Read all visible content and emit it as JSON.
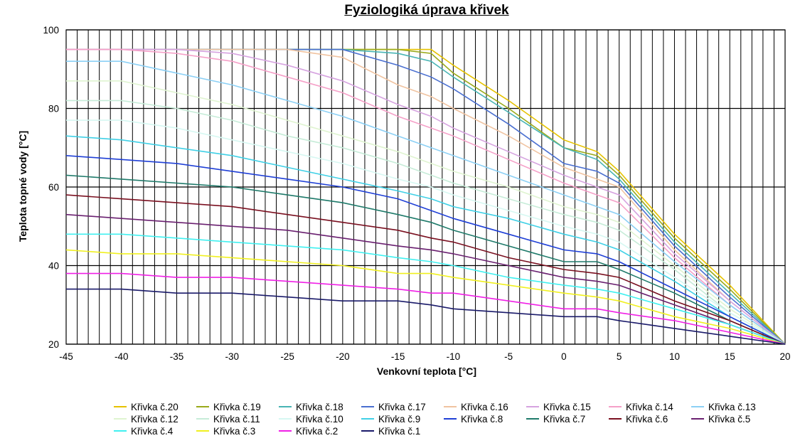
{
  "chart_data": {
    "type": "line",
    "title": "Fyziologiká úprava  křivek",
    "xlabel": "Venkovní teplota [°C]",
    "ylabel": "Teplota topné vody [°C]",
    "xlim": [
      -45,
      20
    ],
    "ylim": [
      20,
      100
    ],
    "x_ticks": [
      "-45",
      "-40",
      "-35",
      "-30",
      "-25",
      "-20",
      "-15",
      "-10",
      "-5",
      "0",
      "5",
      "10",
      "15",
      "20"
    ],
    "y_ticks": [
      "20",
      "40",
      "60",
      "80",
      "100"
    ],
    "grid": true,
    "legend_position": "bottom",
    "x": [
      -45,
      -40,
      -35,
      -30,
      -25,
      -20,
      -15,
      -12,
      -10,
      -5,
      0,
      3,
      5,
      10,
      15,
      20
    ],
    "series": [
      {
        "name": "Křivka č.20",
        "color": "#e6c200",
        "values": [
          95,
          95,
          95,
          95,
          95,
          95,
          95,
          95,
          91,
          82,
          72,
          69,
          64,
          48,
          35,
          20
        ]
      },
      {
        "name": "Křivka č.19",
        "color": "#9aaa1a",
        "values": [
          95,
          95,
          95,
          95,
          95,
          95,
          95,
          94,
          89,
          80,
          70,
          68,
          63,
          47,
          34,
          20
        ]
      },
      {
        "name": "Křivka č.18",
        "color": "#48b4b4",
        "values": [
          95,
          95,
          95,
          95,
          95,
          95,
          94,
          92,
          88,
          79,
          70,
          67,
          62,
          46,
          33,
          20
        ]
      },
      {
        "name": "Křivka č.17",
        "color": "#4a6fd0",
        "values": [
          95,
          95,
          95,
          95,
          95,
          95,
          91,
          88,
          85,
          76,
          66,
          64,
          61,
          45,
          32,
          20
        ]
      },
      {
        "name": "Křivka č.16",
        "color": "#f0c3a0",
        "values": [
          95,
          95,
          95,
          95,
          95,
          93,
          86,
          83,
          80,
          73,
          65,
          62,
          60,
          44,
          31,
          20
        ]
      },
      {
        "name": "Křivka č.15",
        "color": "#d6a3e0",
        "values": [
          95,
          95,
          95,
          94,
          91,
          87,
          81,
          78,
          75,
          69,
          63,
          60,
          58,
          43,
          31,
          20
        ]
      },
      {
        "name": "Křivka č.14",
        "color": "#f5a0c8",
        "values": [
          95,
          95,
          94,
          92,
          88,
          84,
          78,
          75,
          73,
          67,
          61,
          58,
          56,
          42,
          30,
          20
        ]
      },
      {
        "name": "Křivka č.13",
        "color": "#8cd0f5",
        "values": [
          92,
          92,
          89,
          86,
          82,
          78,
          73,
          70,
          68,
          63,
          58,
          55,
          53,
          41,
          30,
          20
        ]
      },
      {
        "name": "Křivka č.12",
        "color": "#dff4d0",
        "values": [
          87,
          87,
          84,
          81,
          77,
          73,
          69,
          66,
          64,
          60,
          55,
          53,
          51,
          40,
          29,
          20
        ]
      },
      {
        "name": "Křivka č.11",
        "color": "#c6ecd8",
        "values": [
          82,
          82,
          80,
          77,
          73,
          70,
          66,
          63,
          61,
          57,
          53,
          51,
          49,
          39,
          28,
          20
        ]
      },
      {
        "name": "Křivka č.10",
        "color": "#d6f8f2",
        "values": [
          77,
          77,
          75,
          72,
          69,
          66,
          62,
          60,
          58,
          54,
          50,
          48,
          46,
          37,
          28,
          20
        ]
      },
      {
        "name": "Křivka č.9",
        "color": "#40d0e6",
        "values": [
          73,
          72,
          70,
          68,
          65,
          62,
          59,
          57,
          55,
          52,
          48,
          46,
          44,
          36,
          27,
          20
        ]
      },
      {
        "name": "Křivka č.8",
        "color": "#1f3fd6",
        "values": [
          68,
          67,
          66,
          64,
          62,
          60,
          57,
          54,
          52,
          48,
          44,
          43,
          41,
          34,
          27,
          20
        ]
      },
      {
        "name": "Křivka č.7",
        "color": "#1f7a6a",
        "values": [
          63,
          62,
          61,
          60,
          58,
          56,
          53,
          51,
          49,
          45,
          41,
          41,
          39,
          33,
          26,
          20
        ]
      },
      {
        "name": "Křivka č.6",
        "color": "#7a1020",
        "values": [
          58,
          57,
          56,
          55,
          53,
          51,
          49,
          47,
          46,
          42,
          39,
          38,
          37,
          31,
          26,
          20
        ]
      },
      {
        "name": "Křivka č.5",
        "color": "#6a2070",
        "values": [
          53,
          52,
          51,
          50,
          49,
          47,
          45,
          44,
          43,
          40,
          37,
          36,
          35,
          30,
          25,
          20
        ]
      },
      {
        "name": "Křivka č.4",
        "color": "#40f0f0",
        "values": [
          48,
          48,
          47,
          46,
          45,
          44,
          42,
          41,
          40,
          37,
          35,
          34,
          33,
          29,
          25,
          20
        ]
      },
      {
        "name": "Křivka č.3",
        "color": "#f0f020",
        "values": [
          44,
          43,
          43,
          42,
          41,
          40,
          38,
          38,
          37,
          35,
          33,
          32,
          31,
          27,
          24,
          20
        ]
      },
      {
        "name": "Křivka č.2",
        "color": "#f020e6",
        "values": [
          38,
          38,
          37,
          37,
          36,
          35,
          34,
          33,
          33,
          31,
          29,
          29,
          28,
          26,
          23,
          20
        ]
      },
      {
        "name": "Křivka č.1",
        "color": "#1a1a6a",
        "values": [
          34,
          34,
          33,
          33,
          32,
          31,
          31,
          30,
          29,
          28,
          27,
          27,
          26,
          24,
          22,
          20
        ]
      }
    ]
  }
}
